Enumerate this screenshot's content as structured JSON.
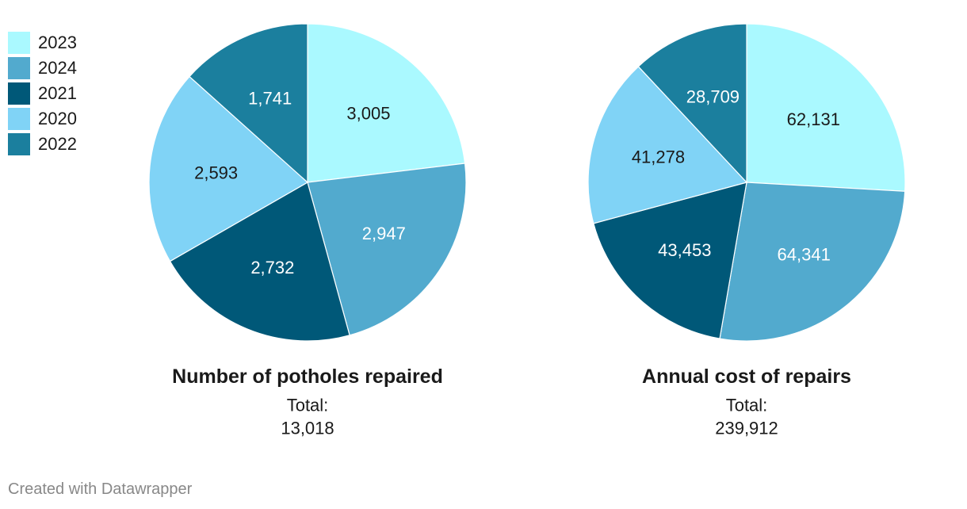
{
  "legend": [
    {
      "label": "2023",
      "color": "#aaf9ff"
    },
    {
      "label": "2024",
      "color": "#52aace"
    },
    {
      "label": "2021",
      "color": "#005878"
    },
    {
      "label": "2020",
      "color": "#80d3f6"
    },
    {
      "label": "2022",
      "color": "#1b7f9e"
    }
  ],
  "chart_data": [
    {
      "type": "pie",
      "title": "Number of potholes repaired",
      "total_label": "Total:",
      "total_value": "13,018",
      "slices": [
        {
          "category": "2023",
          "value": 3005,
          "label": "3,005"
        },
        {
          "category": "2024",
          "value": 2947,
          "label": "2,947"
        },
        {
          "category": "2021",
          "value": 2732,
          "label": "2,732"
        },
        {
          "category": "2020",
          "value": 2593,
          "label": "2,593"
        },
        {
          "category": "2022",
          "value": 1741,
          "label": "1,741"
        }
      ]
    },
    {
      "type": "pie",
      "title": "Annual cost of repairs",
      "total_label": "Total:",
      "total_value": "239,912",
      "slices": [
        {
          "category": "2023",
          "value": 62131,
          "label": "62,131"
        },
        {
          "category": "2024",
          "value": 64341,
          "label": "64,341"
        },
        {
          "category": "2021",
          "value": 43453,
          "label": "43,453"
        },
        {
          "category": "2020",
          "value": 41278,
          "label": "41,278"
        },
        {
          "category": "2022",
          "value": 28709,
          "label": "28,709"
        }
      ]
    }
  ],
  "footer": "Created with Datawrapper"
}
